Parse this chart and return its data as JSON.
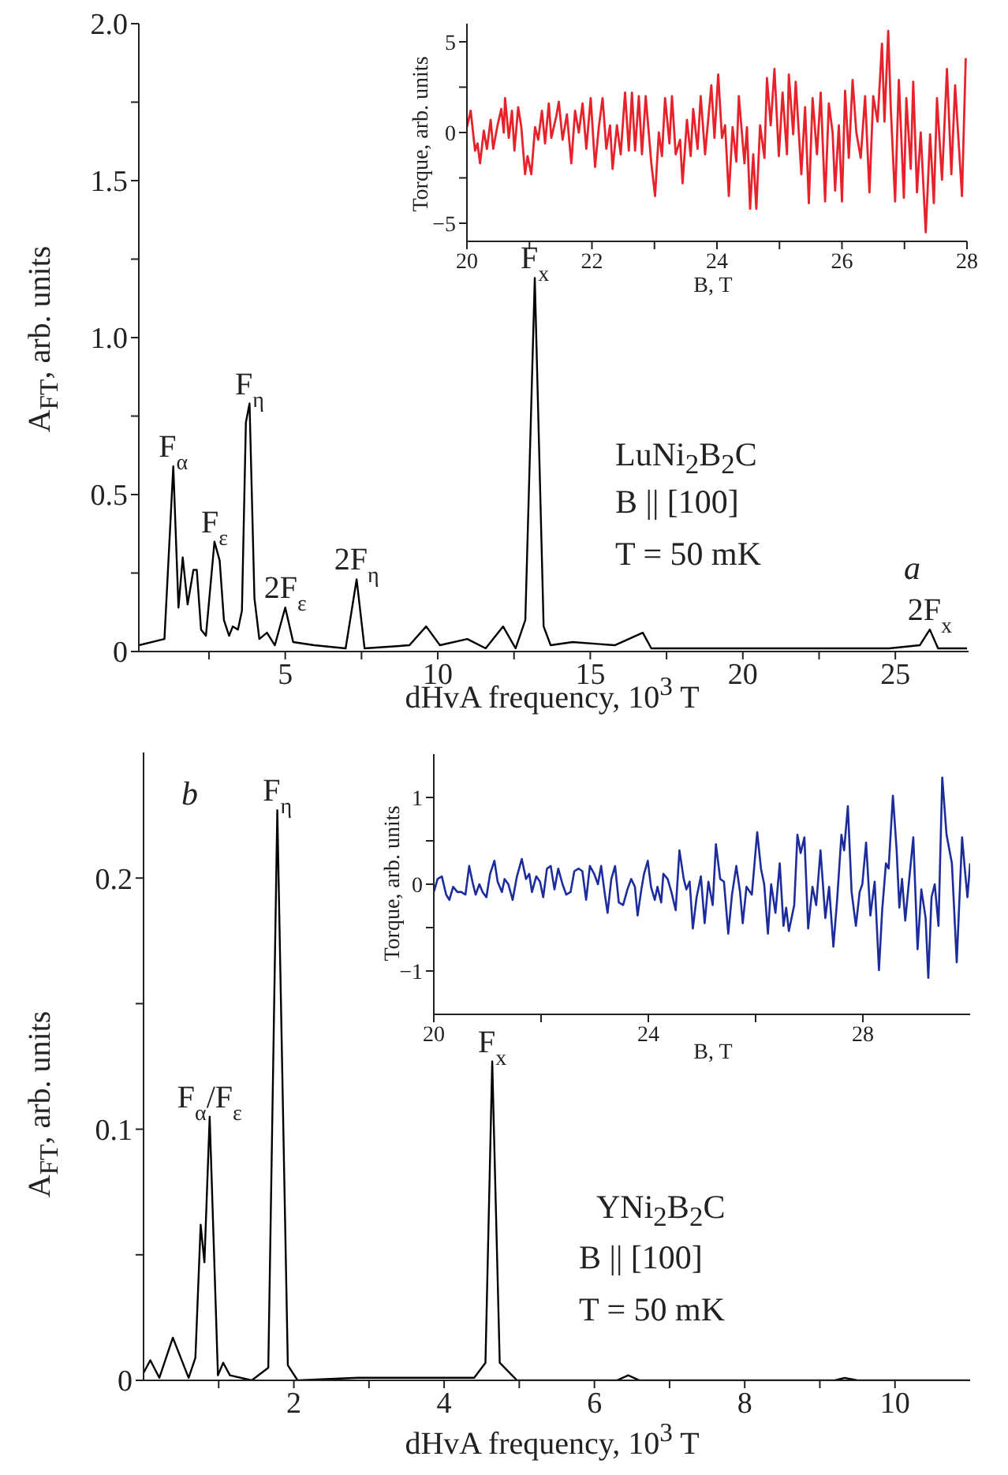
{
  "chart_data": [
    {
      "type": "line",
      "xlabel": "dHvA frequency, 10$^{3}$ T",
      "ylabel": "A$_{FT}$, arb. units",
      "xlim": [
        0.2,
        27.4
      ],
      "xticks": [
        {
          "value": 2.5,
          "label": null
        },
        5,
        {
          "value": 7.5,
          "label": null
        },
        10,
        {
          "value": 12.5,
          "label": null
        },
        15,
        {
          "value": 17.5,
          "label": null
        },
        20,
        {
          "value": 22.5,
          "label": null
        },
        25
      ],
      "ylim": [
        0,
        2
      ],
      "yticks": [
        0,
        {
          "value": 0.25,
          "label": null
        },
        0.5,
        {
          "value": 0.75,
          "label": null
        },
        {
          "value": 1,
          "label": "1.0"
        },
        {
          "value": 1.25,
          "label": null
        },
        1.5,
        {
          "value": 1.75,
          "label": null
        },
        {
          "value": 2,
          "label": "2.0"
        }
      ],
      "color": "#000000",
      "x": [
        0.2,
        1.04,
        1.33,
        1.5,
        1.64,
        1.8,
        1.99,
        2.1,
        2.24,
        2.4,
        2.68,
        2.85,
        2.99,
        3.16,
        3.28,
        3.45,
        3.58,
        3.71,
        3.83,
        3.99,
        4.15,
        4.4,
        4.66,
        5.0,
        5.26,
        5.95,
        6.98,
        7.34,
        7.6,
        9.07,
        9.62,
        10.07,
        10.97,
        11.57,
        12.14,
        12.55,
        12.87,
        13.18,
        13.47,
        13.7,
        14.42,
        15.8,
        16.72,
        17.0,
        19.6,
        22.4,
        24.8,
        25.8,
        26.13,
        26.4,
        27.35
      ],
      "values": [
        0.02,
        0.04,
        0.59,
        0.14,
        0.3,
        0.15,
        0.26,
        0.26,
        0.07,
        0.05,
        0.35,
        0.29,
        0.1,
        0.05,
        0.08,
        0.07,
        0.13,
        0.73,
        0.79,
        0.17,
        0.04,
        0.06,
        0.02,
        0.14,
        0.03,
        0.02,
        0.01,
        0.23,
        0.01,
        0.02,
        0.08,
        0.02,
        0.04,
        0.01,
        0.08,
        0.01,
        0.1,
        1.19,
        0.08,
        0.02,
        0.03,
        0.02,
        0.06,
        0.01,
        0.01,
        0.01,
        0.01,
        0.02,
        0.07,
        0.01,
        0.01
      ],
      "annotations": [
        "LuNi$_{2}$B$_{2}$C",
        "B || [100]",
        "T = 50 mK",
        "a",
        {
          "text": "F$_{α}$",
          "x": 1.33,
          "y": 0.59
        },
        {
          "text": "F$_{ε}$",
          "x": 2.68,
          "y": 0.35
        },
        {
          "text": "F$_{η}$",
          "x": 3.83,
          "y": 0.79
        },
        {
          "text": "2F$_{ε}$",
          "x": 5.0,
          "y": 0.14
        },
        {
          "text": "2F$_{η}$",
          "x": 7.34,
          "y": 0.23
        },
        {
          "text": "F$_{x}$",
          "x": 13.18,
          "y": 1.19
        },
        {
          "text": "2F$_{x}$",
          "x": 26.13,
          "y": 0.07
        }
      ]
    },
    {
      "type": "line",
      "xlabel": "B, T",
      "ylabel": "Torque, arb. units",
      "xlim": [
        20,
        28
      ],
      "xticks": [
        20,
        {
          "value": 21,
          "label": null
        },
        22,
        {
          "value": 23,
          "label": null
        },
        24,
        {
          "value": 25,
          "label": null
        },
        26,
        {
          "value": 27,
          "label": null
        },
        28
      ],
      "ylim": [
        -6,
        6
      ],
      "yticks": [
        {
          "value": -5,
          "label": "−5"
        },
        {
          "value": -2.5,
          "label": null
        },
        0,
        {
          "value": 2.5,
          "label": null
        },
        5
      ],
      "color": "#e8222b",
      "x": [
        20.0,
        20.06,
        20.13,
        20.17,
        20.21,
        20.27,
        20.32,
        20.38,
        20.42,
        20.49,
        20.55,
        20.59,
        20.61,
        20.67,
        20.72,
        20.76,
        20.82,
        20.87,
        20.93,
        20.97,
        21.03,
        21.09,
        21.14,
        21.2,
        21.25,
        21.31,
        21.35,
        21.43,
        21.47,
        21.53,
        21.6,
        21.67,
        21.73,
        21.79,
        21.85,
        21.91,
        21.98,
        22.05,
        22.11,
        22.17,
        22.23,
        22.29,
        22.33,
        22.4,
        22.46,
        22.53,
        22.59,
        22.64,
        22.69,
        22.75,
        22.8,
        22.86,
        22.95,
        23.01,
        23.07,
        23.12,
        23.17,
        23.24,
        23.28,
        23.34,
        23.41,
        23.45,
        23.52,
        23.58,
        23.62,
        23.69,
        23.74,
        23.81,
        23.91,
        23.96,
        24.02,
        24.08,
        24.13,
        24.19,
        24.25,
        24.31,
        24.35,
        24.44,
        24.48,
        24.53,
        24.58,
        24.63,
        24.69,
        24.76,
        24.8,
        24.86,
        24.92,
        24.99,
        25.05,
        25.12,
        25.15,
        25.22,
        25.26,
        25.35,
        25.41,
        25.47,
        25.53,
        25.6,
        25.66,
        25.73,
        25.79,
        25.85,
        25.89,
        25.95,
        26.0,
        26.05,
        26.11,
        26.17,
        26.23,
        26.3,
        26.37,
        26.44,
        26.5,
        26.57,
        26.64,
        26.68,
        26.74,
        26.78,
        26.85,
        26.91,
        26.99,
        27.03,
        27.1,
        27.14,
        27.2,
        27.26,
        27.34,
        27.41,
        27.47,
        27.52,
        27.6,
        27.68,
        27.75,
        27.81,
        27.92,
        27.98
      ],
      "values": [
        0.3,
        1.2,
        -1.0,
        -0.6,
        -1.7,
        0.1,
        -0.9,
        0.7,
        -0.9,
        0.4,
        1.3,
        0.0,
        1.9,
        -0.3,
        1.2,
        -1.0,
        1.4,
        0.3,
        -2.3,
        -1.3,
        -2.3,
        0.3,
        -0.4,
        1.2,
        -0.6,
        1.6,
        -0.3,
        0.9,
        1.7,
        -0.4,
        1.0,
        -1.7,
        1.2,
        0.0,
        1.6,
        -0.9,
        1.9,
        -1.9,
        0.3,
        1.9,
        -0.9,
        0.4,
        -2.0,
        0.4,
        -1.2,
        2.2,
        -1.0,
        2.2,
        -1.0,
        2.0,
        -1.2,
        2.0,
        -1.7,
        -3.5,
        0.0,
        -1.3,
        1.9,
        -0.6,
        2.0,
        -1.2,
        -0.4,
        -2.8,
        0.7,
        -1.3,
        1.3,
        -0.9,
        2.0,
        -1.2,
        2.6,
        -0.3,
        3.2,
        -0.3,
        0.4,
        -3.5,
        0.3,
        -1.6,
        2.0,
        -1.7,
        0.3,
        -4.2,
        -1.2,
        -4.2,
        0.4,
        -1.4,
        3.0,
        0.4,
        3.5,
        -1.3,
        2.2,
        -1.2,
        3.2,
        -0.1,
        2.8,
        -2.3,
        1.4,
        -3.9,
        1.9,
        -1.2,
        2.2,
        -3.8,
        1.6,
        0.0,
        -3.2,
        0.4,
        -3.8,
        2.3,
        -1.4,
        2.9,
        0.0,
        -1.4,
        2.0,
        -3.3,
        2.0,
        0.6,
        4.9,
        0.6,
        5.6,
        1.4,
        -3.8,
        2.9,
        -3.6,
        1.9,
        -2.0,
        2.8,
        -3.3,
        0.0,
        -5.5,
        -0.1,
        -3.9,
        1.9,
        -2.6,
        3.5,
        -2.3,
        2.6,
        -3.5,
        4.1
      ]
    },
    {
      "type": "line",
      "xlabel": "dHvA frequency, 10$^{3}$ T",
      "ylabel": "A$_{FT}$, arb. units",
      "xlim": [
        0,
        11
      ],
      "xticks": [
        {
          "value": 1,
          "label": null
        },
        2,
        {
          "value": 3,
          "label": null
        },
        4,
        {
          "value": 5,
          "label": null
        },
        6,
        {
          "value": 7,
          "label": null
        },
        8,
        {
          "value": 9,
          "label": null
        },
        10
      ],
      "ylim": [
        0,
        0.25
      ],
      "yticks": [
        0,
        {
          "value": 0.05,
          "label": null
        },
        0.1,
        {
          "value": 0.15,
          "label": null
        },
        0.2
      ],
      "color": "#000000",
      "x": [
        0,
        0.09,
        0.21,
        0.39,
        0.6,
        0.69,
        0.76,
        0.81,
        0.88,
        0.99,
        1.06,
        1.15,
        1.44,
        1.66,
        1.78,
        1.92,
        2.05,
        2.85,
        3.69,
        4.4,
        4.55,
        4.64,
        4.74,
        4.97,
        5.5,
        6.3,
        6.45,
        6.6,
        9.2,
        9.33,
        9.5,
        11
      ],
      "values": [
        0.003,
        0.008,
        0.001,
        0.017,
        0.001,
        0.009,
        0.062,
        0.047,
        0.105,
        0.002,
        0.007,
        0.002,
        0,
        0.005,
        0.227,
        0.006,
        0,
        0.001,
        0.001,
        0.001,
        0.007,
        0.127,
        0.007,
        0,
        0,
        0,
        0.002,
        0,
        0,
        0.001,
        0,
        0
      ],
      "annotations": [
        "b",
        "YNi$_{2}$B$_{2}$C",
        "B || [100]",
        "T = 50 mK",
        {
          "text": "F$_{α}$/F$_{ε}$",
          "x": 0.88,
          "y": 0.105
        },
        {
          "text": "F$_{η}$",
          "x": 1.78,
          "y": 0.227
        },
        {
          "text": "F$_{x}$",
          "x": 4.64,
          "y": 0.127
        }
      ]
    },
    {
      "type": "line",
      "xlabel": "B, T",
      "ylabel": "Torque, arb. units",
      "xlim": [
        20,
        30
      ],
      "xticks": [
        20,
        {
          "value": 22,
          "label": null
        },
        24,
        {
          "value": 26,
          "label": null
        },
        28
      ],
      "ylim": [
        -1.5,
        1.5
      ],
      "yticks": [
        {
          "value": -1,
          "label": "−1"
        },
        {
          "value": -0.5,
          "label": null
        },
        0,
        {
          "value": 0.5,
          "label": null
        },
        1
      ],
      "color": "#1c2c9c",
      "x": [
        20.0,
        20.07,
        20.15,
        20.23,
        20.29,
        20.36,
        20.44,
        20.51,
        20.59,
        20.66,
        20.72,
        20.78,
        20.85,
        20.91,
        20.98,
        21.05,
        21.13,
        21.19,
        21.27,
        21.32,
        21.39,
        21.47,
        21.55,
        21.64,
        21.72,
        21.78,
        21.83,
        21.91,
        21.98,
        22.04,
        22.11,
        22.18,
        22.25,
        22.32,
        22.4,
        22.47,
        22.55,
        22.62,
        22.7,
        22.77,
        22.84,
        22.91,
        22.99,
        23.06,
        23.12,
        23.19,
        23.24,
        23.31,
        23.38,
        23.45,
        23.53,
        23.61,
        23.68,
        23.75,
        23.8,
        23.87,
        23.92,
        23.99,
        24.05,
        24.12,
        24.17,
        24.24,
        24.28,
        24.36,
        24.43,
        24.51,
        24.58,
        24.66,
        24.71,
        24.77,
        24.83,
        24.9,
        24.98,
        25.05,
        25.12,
        25.2,
        25.26,
        25.34,
        25.41,
        25.49,
        25.56,
        25.64,
        25.71,
        25.76,
        25.83,
        25.93,
        26.03,
        26.1,
        26.16,
        26.23,
        26.29,
        26.37,
        26.45,
        26.52,
        26.57,
        26.62,
        26.72,
        26.78,
        26.84,
        26.91,
        26.98,
        27.06,
        27.13,
        27.21,
        27.3,
        27.37,
        27.45,
        27.52,
        27.6,
        27.65,
        27.72,
        27.79,
        27.87,
        27.94,
        27.99,
        28.06,
        28.14,
        28.22,
        28.3,
        28.36,
        28.43,
        28.48,
        28.56,
        28.63,
        28.68,
        28.73,
        28.79,
        28.85,
        28.94,
        29.02,
        29.09,
        29.17,
        29.22,
        29.28,
        29.34,
        29.41,
        29.48,
        29.56,
        29.66,
        29.75,
        29.85,
        29.9,
        29.95,
        30.0
      ],
      "values": [
        -0.09,
        0.06,
        0.09,
        -0.12,
        -0.18,
        -0.03,
        -0.09,
        -0.09,
        -0.12,
        0.21,
        0.03,
        -0.12,
        0.0,
        -0.09,
        -0.15,
        0.12,
        0.27,
        0.03,
        -0.09,
        0.06,
        0.0,
        -0.18,
        0.09,
        0.29,
        0.06,
        0.12,
        -0.09,
        0.09,
        0.03,
        -0.15,
        0.18,
        0.21,
        -0.06,
        0.18,
        0.0,
        -0.12,
        -0.09,
        0.15,
        0.18,
        0.15,
        -0.18,
        0.21,
        0.12,
        0.0,
        0.21,
        -0.12,
        -0.33,
        0.06,
        0.21,
        -0.21,
        -0.24,
        -0.06,
        0.06,
        -0.03,
        -0.36,
        -0.06,
        0.12,
        0.27,
        -0.03,
        -0.18,
        -0.03,
        -0.21,
        0.12,
        0.06,
        -0.09,
        -0.3,
        0.39,
        0.06,
        -0.06,
        0.03,
        -0.51,
        -0.15,
        0.09,
        -0.45,
        0.03,
        -0.24,
        0.46,
        0.06,
        0.03,
        -0.57,
        -0.12,
        0.21,
        -0.09,
        -0.45,
        -0.03,
        -0.12,
        0.6,
        0.18,
        0.0,
        -0.57,
        0.0,
        -0.33,
        0.24,
        -0.48,
        -0.27,
        -0.54,
        -0.24,
        0.57,
        0.36,
        0.54,
        -0.51,
        -0.03,
        -0.24,
        0.39,
        -0.39,
        -0.03,
        -0.72,
        -0.18,
        0.57,
        0.39,
        0.9,
        -0.09,
        -0.48,
        -0.09,
        0.0,
        0.48,
        -0.36,
        0.03,
        -0.99,
        -0.3,
        0.24,
        0.18,
        1.02,
        0.39,
        -0.27,
        0.06,
        -0.42,
        -0.03,
        0.54,
        -0.75,
        -0.06,
        -0.39,
        -1.08,
        -0.15,
        0.0,
        -0.48,
        1.23,
        0.57,
        0.24,
        -0.9,
        0.54,
        0.18,
        -0.15,
        0.24
      ]
    }
  ]
}
